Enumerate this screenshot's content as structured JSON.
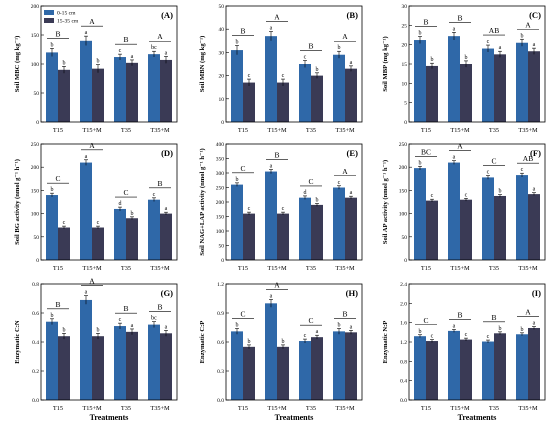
{
  "x_axis_title": "Treatments",
  "colors": {
    "series_0_15": "#2f68a8",
    "series_15_35": "#3a3a55",
    "error": "#000000"
  },
  "legend": [
    {
      "name": "0-15 cm"
    },
    {
      "name": "15-35 cm"
    }
  ],
  "chart_data": [
    {
      "panel": "(A)",
      "type": "bar",
      "ylabel": "Soil MBC (mg kg⁻¹)",
      "categories": [
        "T15",
        "T15+M",
        "T35",
        "T35+M"
      ],
      "ylim": [
        0,
        200
      ],
      "yticks": [
        0,
        50,
        100,
        150,
        200
      ],
      "series": [
        {
          "name": "0-15 cm",
          "values": [
            120,
            140,
            112,
            117
          ],
          "err": [
            7,
            8,
            5,
            5
          ],
          "letters": [
            "b",
            "a",
            "c",
            "bc"
          ]
        },
        {
          "name": "15-35 cm",
          "values": [
            90,
            92,
            102,
            107
          ],
          "err": [
            6,
            7,
            5,
            6
          ],
          "letters": [
            "b",
            "b",
            "a",
            "a"
          ]
        }
      ],
      "group_letters": [
        "B",
        "A",
        "B",
        "A"
      ]
    },
    {
      "panel": "(B)",
      "type": "bar",
      "ylabel": "Soil MBN (mg kg⁻¹)",
      "categories": [
        "T15",
        "T15+M",
        "T35",
        "T35+M"
      ],
      "ylim": [
        0,
        50
      ],
      "yticks": [
        0,
        10,
        20,
        30,
        40,
        50
      ],
      "series": [
        {
          "name": "0-15 cm",
          "values": [
            31,
            37,
            25,
            29
          ],
          "err": [
            2,
            2,
            1.5,
            1.5
          ],
          "letters": [
            "b",
            "a",
            "c",
            "b"
          ]
        },
        {
          "name": "15-35 cm",
          "values": [
            17,
            17,
            20,
            23
          ],
          "err": [
            1.5,
            1.5,
            1.2,
            1.2
          ],
          "letters": [
            "c",
            "c",
            "b",
            "a"
          ]
        }
      ],
      "group_letters": [
        "B",
        "A",
        "B",
        "A"
      ]
    },
    {
      "panel": "(C)",
      "type": "bar",
      "ylabel": "Soil MBP (mg kg⁻¹)",
      "categories": [
        "T15",
        "T15+M",
        "T35",
        "T35+M"
      ],
      "ylim": [
        0,
        30
      ],
      "yticks": [
        0,
        5,
        10,
        15,
        20,
        25,
        30
      ],
      "series": [
        {
          "name": "0-15 cm",
          "values": [
            21.2,
            22.2,
            19,
            20.5
          ],
          "err": [
            0.9,
            1,
            0.9,
            0.9
          ],
          "letters": [
            "b",
            "a",
            "c",
            "b"
          ]
        },
        {
          "name": "15-35 cm",
          "values": [
            14.5,
            15,
            17.5,
            18.3
          ],
          "err": [
            0.7,
            0.8,
            0.8,
            0.8
          ],
          "letters": [
            "b",
            "b",
            "a",
            "a"
          ]
        }
      ],
      "group_letters": [
        "B",
        "B",
        "AB",
        "A"
      ]
    },
    {
      "panel": "(D)",
      "type": "bar",
      "ylabel": "Soil BG activity (nmol g⁻¹ h⁻¹)",
      "categories": [
        "T15",
        "T15+M",
        "T35",
        "T35+M"
      ],
      "ylim": [
        0,
        250
      ],
      "yticks": [
        0,
        50,
        100,
        150,
        200,
        250
      ],
      "series": [
        {
          "name": "0-15 cm",
          "values": [
            140,
            210,
            110,
            130
          ],
          "err": [
            4,
            6,
            4,
            4
          ],
          "letters": [
            "b",
            "a",
            "d",
            "c"
          ]
        },
        {
          "name": "15-35 cm",
          "values": [
            70,
            70,
            90,
            100
          ],
          "err": [
            3,
            3,
            3,
            3
          ],
          "letters": [
            "c",
            "c",
            "b",
            "a"
          ]
        }
      ],
      "group_letters": [
        "C",
        "A",
        "C",
        "B"
      ]
    },
    {
      "panel": "(E)",
      "type": "bar",
      "ylabel": "Soil NAG+LAP activity (nmol g⁻¹ h⁻¹)",
      "categories": [
        "T15",
        "T15+M",
        "T35",
        "T35+M"
      ],
      "ylim": [
        0,
        400
      ],
      "yticks": [
        0,
        50,
        100,
        150,
        200,
        250,
        300,
        350,
        400
      ],
      "series": [
        {
          "name": "0-15 cm",
          "values": [
            260,
            305,
            215,
            250
          ],
          "err": [
            6,
            7,
            6,
            6
          ],
          "letters": [
            "b",
            "a",
            "d",
            "c"
          ]
        },
        {
          "name": "15-35 cm",
          "values": [
            160,
            160,
            190,
            215
          ],
          "err": [
            5,
            5,
            5,
            5
          ],
          "letters": [
            "c",
            "c",
            "b",
            "a"
          ]
        }
      ],
      "group_letters": [
        "C",
        "B",
        "C",
        "A"
      ]
    },
    {
      "panel": "(F)",
      "type": "bar",
      "ylabel": "Soil AP activity (nmol g⁻¹ h⁻¹)",
      "categories": [
        "T15",
        "T15+M",
        "T35",
        "T35+M"
      ],
      "ylim": [
        0,
        250
      ],
      "yticks": [
        0,
        50,
        100,
        150,
        200,
        250
      ],
      "series": [
        {
          "name": "0-15 cm",
          "values": [
            198,
            210,
            178,
            183
          ],
          "err": [
            4,
            4,
            4,
            4
          ],
          "letters": [
            "b",
            "a",
            "c",
            "c"
          ]
        },
        {
          "name": "15-35 cm",
          "values": [
            128,
            130,
            138,
            142
          ],
          "err": [
            3,
            3,
            3,
            3
          ],
          "letters": [
            "c",
            "c",
            "b",
            "a"
          ]
        }
      ],
      "group_letters": [
        "BC",
        "A",
        "C",
        "AB"
      ]
    },
    {
      "panel": "(G)",
      "type": "bar",
      "ylabel": "Enzymatic C:N",
      "categories": [
        "T15",
        "T15+M",
        "T35",
        "T35+M"
      ],
      "ylim": [
        0,
        0.8
      ],
      "yticks": [
        0.0,
        0.2,
        0.4,
        0.6,
        0.8
      ],
      "series": [
        {
          "name": "0-15 cm",
          "values": [
            0.54,
            0.69,
            0.51,
            0.52
          ],
          "err": [
            0.02,
            0.03,
            0.02,
            0.02
          ],
          "letters": [
            "b",
            "a",
            "c",
            "bc"
          ]
        },
        {
          "name": "15-35 cm",
          "values": [
            0.44,
            0.44,
            0.47,
            0.46
          ],
          "err": [
            0.02,
            0.02,
            0.02,
            0.02
          ],
          "letters": [
            "b",
            "b",
            "a",
            "a"
          ]
        }
      ],
      "group_letters": [
        "B",
        "A",
        "B",
        "B"
      ]
    },
    {
      "panel": "(H)",
      "type": "bar",
      "ylabel": "Enzymatic C:P",
      "categories": [
        "T15",
        "T15+M",
        "T35",
        "T35+M"
      ],
      "ylim": [
        0,
        1.2
      ],
      "yticks": [
        0.0,
        0.3,
        0.6,
        0.9,
        1.2
      ],
      "series": [
        {
          "name": "0-15 cm",
          "values": [
            0.71,
            1.0,
            0.61,
            0.71
          ],
          "err": [
            0.03,
            0.04,
            0.02,
            0.03
          ],
          "letters": [
            "b",
            "a",
            "c",
            "b"
          ]
        },
        {
          "name": "15-35 cm",
          "values": [
            0.55,
            0.55,
            0.65,
            0.7
          ],
          "err": [
            0.02,
            0.02,
            0.02,
            0.02
          ],
          "letters": [
            "b",
            "b",
            "a",
            "a"
          ]
        }
      ],
      "group_letters": [
        "C",
        "A",
        "C",
        "B"
      ]
    },
    {
      "panel": "(I)",
      "type": "bar",
      "ylabel": "Enzymatic N:P",
      "categories": [
        "T15",
        "T15+M",
        "T35",
        "T35+M"
      ],
      "ylim": [
        0,
        2.4
      ],
      "yticks": [
        0.0,
        0.4,
        0.8,
        1.2,
        1.6,
        2.0,
        2.4
      ],
      "series": [
        {
          "name": "0-15 cm",
          "values": [
            1.32,
            1.43,
            1.21,
            1.36
          ],
          "err": [
            0.03,
            0.03,
            0.03,
            0.03
          ],
          "letters": [
            "b",
            "a",
            "c",
            "b"
          ]
        },
        {
          "name": "15-35 cm",
          "values": [
            1.22,
            1.25,
            1.38,
            1.49
          ],
          "err": [
            0.03,
            0.03,
            0.03,
            0.03
          ],
          "letters": [
            "c",
            "c",
            "b",
            "a"
          ]
        }
      ],
      "group_letters": [
        "C",
        "B",
        "B",
        "A"
      ]
    }
  ]
}
